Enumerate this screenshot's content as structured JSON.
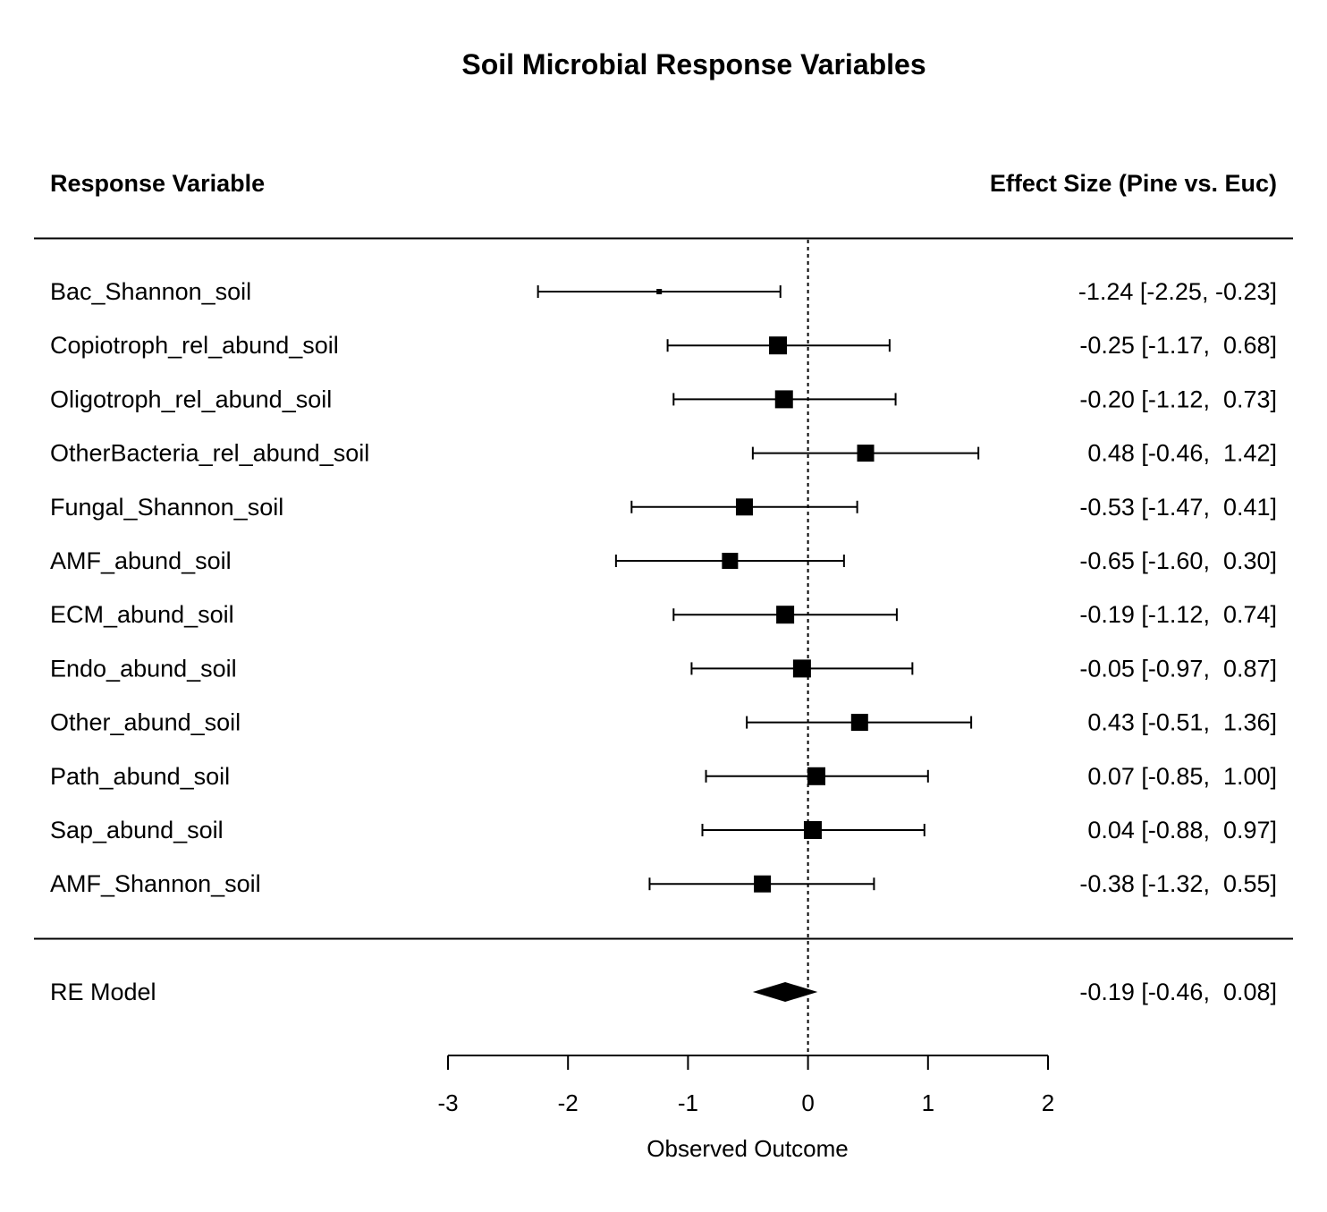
{
  "chart_data": {
    "type": "forest",
    "title": "Soil Microbial Response Variables",
    "left_header": "Response Variable",
    "right_header": "Effect Size (Pine vs. Euc)",
    "xlabel": "Observed Outcome",
    "xlim": [
      -3,
      2
    ],
    "xticks": [
      "-3",
      "-2",
      "-1",
      "0",
      "1",
      "2"
    ],
    "reference_line": 0,
    "studies": [
      {
        "label": "Bac_Shannon_soil",
        "estimate": -1.24,
        "lower": -2.25,
        "upper": -0.23,
        "ci_text": "-1.24 [-2.25, -0.23]",
        "weight": 0.1
      },
      {
        "label": "Copiotroph_rel_abund_soil",
        "estimate": -0.25,
        "lower": -1.17,
        "upper": 0.68,
        "ci_text": "-0.25 [-1.17,  0.68]",
        "weight": 1.0
      },
      {
        "label": "Oligotroph_rel_abund_soil",
        "estimate": -0.2,
        "lower": -1.12,
        "upper": 0.73,
        "ci_text": "-0.20 [-1.12,  0.73]",
        "weight": 1.0
      },
      {
        "label": "OtherBacteria_rel_abund_soil",
        "estimate": 0.48,
        "lower": -0.46,
        "upper": 1.42,
        "ci_text": "0.48 [-0.46,  1.42]",
        "weight": 0.95
      },
      {
        "label": "Fungal_Shannon_soil",
        "estimate": -0.53,
        "lower": -1.47,
        "upper": 0.41,
        "ci_text": "-0.53 [-1.47,  0.41]",
        "weight": 0.95
      },
      {
        "label": "AMF_abund_soil",
        "estimate": -0.65,
        "lower": -1.6,
        "upper": 0.3,
        "ci_text": "-0.65 [-1.60,  0.30]",
        "weight": 0.9
      },
      {
        "label": "ECM_abund_soil",
        "estimate": -0.19,
        "lower": -1.12,
        "upper": 0.74,
        "ci_text": "-0.19 [-1.12,  0.74]",
        "weight": 1.0
      },
      {
        "label": "Endo_abund_soil",
        "estimate": -0.05,
        "lower": -0.97,
        "upper": 0.87,
        "ci_text": "-0.05 [-0.97,  0.87]",
        "weight": 1.0
      },
      {
        "label": "Other_abund_soil",
        "estimate": 0.43,
        "lower": -0.51,
        "upper": 1.36,
        "ci_text": "0.43 [-0.51,  1.36]",
        "weight": 0.95
      },
      {
        "label": "Path_abund_soil",
        "estimate": 0.07,
        "lower": -0.85,
        "upper": 1.0,
        "ci_text": "0.07 [-0.85,  1.00]",
        "weight": 1.0
      },
      {
        "label": "Sap_abund_soil",
        "estimate": 0.04,
        "lower": -0.88,
        "upper": 0.97,
        "ci_text": "0.04 [-0.88,  0.97]",
        "weight": 1.0
      },
      {
        "label": "AMF_Shannon_soil",
        "estimate": -0.38,
        "lower": -1.32,
        "upper": 0.55,
        "ci_text": "-0.38 [-1.32,  0.55]",
        "weight": 0.95
      }
    ],
    "summary": {
      "label": "RE Model",
      "estimate": -0.19,
      "lower": -0.46,
      "upper": 0.08,
      "ci_text": "-0.19 [-0.46,  0.08]"
    }
  }
}
